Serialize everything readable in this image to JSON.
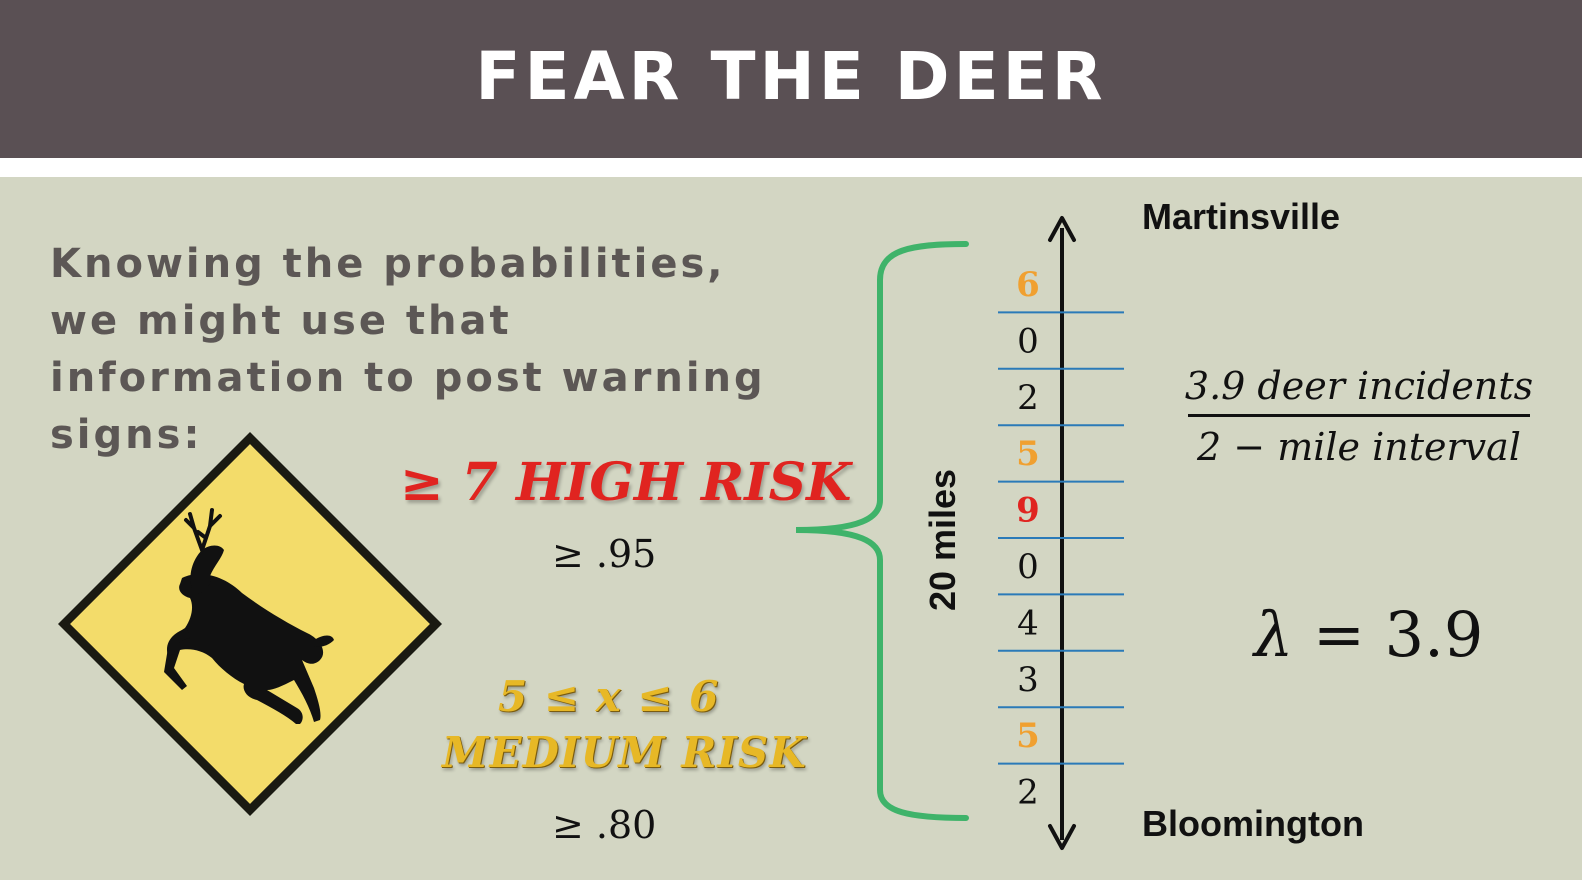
{
  "title": "FEAR THE DEER",
  "intro_text": "Knowing the probabilities, we might use that information to post warning signs:",
  "high_risk": {
    "label": "≥ 7 HIGH RISK",
    "probability": "≥ .95"
  },
  "medium_risk": {
    "range": "5 ≤ x ≤ 6",
    "label": "MEDIUM RISK",
    "probability": "≥ .80"
  },
  "places": {
    "top": "Martinsville",
    "bottom": "Bloomington"
  },
  "distance_label": "20 miles",
  "intervals": [
    {
      "value": "6",
      "color": "#f0a030"
    },
    {
      "value": "0",
      "color": "#111111"
    },
    {
      "value": "2",
      "color": "#111111"
    },
    {
      "value": "5",
      "color": "#f0a030"
    },
    {
      "value": "9",
      "color": "#e02420"
    },
    {
      "value": "0",
      "color": "#111111"
    },
    {
      "value": "4",
      "color": "#111111"
    },
    {
      "value": "3",
      "color": "#111111"
    },
    {
      "value": "5",
      "color": "#f0a030"
    },
    {
      "value": "2",
      "color": "#111111"
    }
  ],
  "rate": {
    "numerator": "3.9 deer incidents",
    "denominator": "2 − mile interval"
  },
  "lambda": {
    "symbol": "λ",
    "equation": "= 3.9"
  },
  "colors": {
    "title_bar": "#5a5054",
    "brace": "#3fb36a",
    "divider": "#2a7ab8",
    "sign_yellow": "#f3dc6a"
  }
}
